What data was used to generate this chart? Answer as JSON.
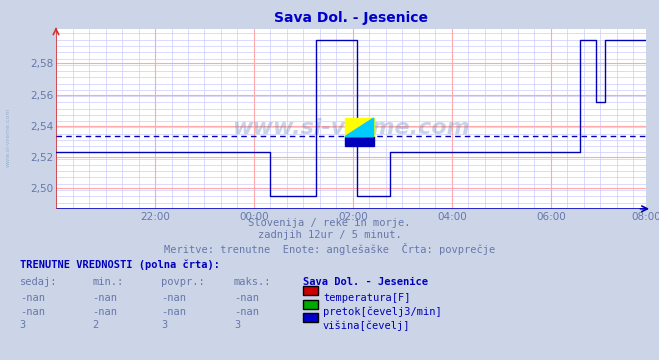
{
  "title": "Sava Dol. - Jesenice",
  "title_color": "#0000cc",
  "bg_color": "#ccd5e8",
  "plot_bg_color": "#ffffff",
  "grid_color_red": "#ffaaaa",
  "grid_color_blue": "#ccccff",
  "line_color": "#0000bb",
  "avg_line_color": "#0000bb",
  "avg_value": 2.5335,
  "ylim": [
    2.487,
    2.602
  ],
  "yticks": [
    2.5,
    2.52,
    2.54,
    2.56,
    2.58
  ],
  "ytick_labels": [
    "2,50",
    "2,52",
    "2,54",
    "2,56",
    "2,58"
  ],
  "xtick_major_pos": [
    24,
    48,
    72,
    96,
    120,
    143
  ],
  "xtick_labels": [
    "22:00",
    "00:00",
    "02:00",
    "04:00",
    "06:00",
    "08:00"
  ],
  "subtitle1": "Slovenija / reke in morje.",
  "subtitle2": "zadnjih 12ur / 5 minut.",
  "subtitle3": "Meritve: trenutne  Enote: anglešaške  Črta: povprečje",
  "text_color": "#6677aa",
  "table_title": "TRENUTNE VREDNOSTI (polna črta):",
  "table_title_color": "#0000bb",
  "col_headers": [
    "sedaj:",
    "min.:",
    "povpr.:",
    "maks.:"
  ],
  "station_label": "Sava Dol. - Jesenice",
  "row1_vals": [
    "-nan",
    "-nan",
    "-nan",
    "-nan"
  ],
  "row1_label": "temperatura[F]",
  "row1_color": "#cc0000",
  "row2_vals": [
    "-nan",
    "-nan",
    "-nan",
    "-nan"
  ],
  "row2_label": "pretok[čevelj3/min]",
  "row2_color": "#00aa00",
  "row3_vals": [
    "3",
    "2",
    "3",
    "3"
  ],
  "row3_label": "višina[čevelj]",
  "row3_color": "#0000cc",
  "watermark": "www.si-vreme.com",
  "side_label": "www.si-vreme.com",
  "logo_yellow": "#ffff00",
  "logo_cyan": "#00ccff",
  "logo_blue": "#0000bb"
}
